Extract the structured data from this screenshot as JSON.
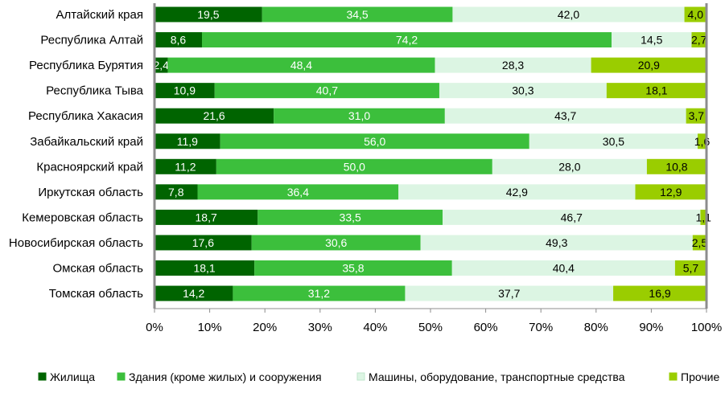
{
  "chart_data": {
    "type": "bar",
    "orientation": "horizontal",
    "stacked": "percent",
    "categories": [
      "Алтайский края",
      "Республика Алтай",
      "Республика Бурятия",
      "Республика Тыва",
      "Республика Хакасия",
      "Забайкальский край",
      "Красноярский край",
      "Иркутская область",
      "Кемеровская область",
      "Новосибирская область",
      "Омская область",
      "Томская область"
    ],
    "series": [
      {
        "name": "Жилища",
        "color": "#006400",
        "values": [
          19.5,
          8.6,
          2.4,
          10.9,
          21.6,
          11.9,
          11.2,
          7.8,
          18.7,
          17.6,
          18.1,
          14.2
        ],
        "labels": [
          "19,5",
          "8,6",
          "2,4",
          "10,9",
          "21,6",
          "11,9",
          "11,2",
          "7,8",
          "18,7",
          "17,6",
          "18,1",
          "14,2"
        ]
      },
      {
        "name": "Здания (кроме жилых) и сооружения",
        "color": "#3cbf3c",
        "values": [
          34.5,
          74.2,
          48.4,
          40.7,
          31.0,
          56.0,
          50.0,
          36.4,
          33.5,
          30.6,
          35.8,
          31.2
        ],
        "labels": [
          "34,5",
          "74,2",
          "48,4",
          "40,7",
          "31,0",
          "56,0",
          "50,0",
          "36,4",
          "33,5",
          "30,6",
          "35,8",
          "31,2"
        ]
      },
      {
        "name": "Машины, оборудование, транспортные средства",
        "color": "#dcf5e3",
        "values": [
          42.0,
          14.5,
          28.3,
          30.3,
          43.7,
          30.5,
          28.0,
          42.9,
          46.7,
          49.3,
          40.4,
          37.7
        ],
        "labels": [
          "42,0",
          "14,5",
          "28,3",
          "30,3",
          "43,7",
          "30,5",
          "28,0",
          "42,9",
          "46,7",
          "49,3",
          "40,4",
          "37,7"
        ]
      },
      {
        "name": "Прочие",
        "color": "#9acd00",
        "values": [
          4.0,
          2.7,
          20.9,
          18.1,
          3.7,
          1.6,
          10.8,
          12.9,
          1.1,
          2.5,
          5.7,
          16.9
        ],
        "labels": [
          "4,0",
          "2,7",
          "20,9",
          "18,1",
          "3,7",
          "1,6",
          "10,8",
          "12,9",
          "1,1",
          "2,5",
          "5,7",
          "16,9"
        ]
      }
    ],
    "xticks": [
      "0%",
      "10%",
      "20%",
      "30%",
      "40%",
      "50%",
      "60%",
      "70%",
      "80%",
      "90%",
      "100%"
    ],
    "xlim": [
      0,
      100
    ],
    "grid": false,
    "legend_position": "bottom",
    "title": "",
    "xlabel": "",
    "ylabel": ""
  }
}
